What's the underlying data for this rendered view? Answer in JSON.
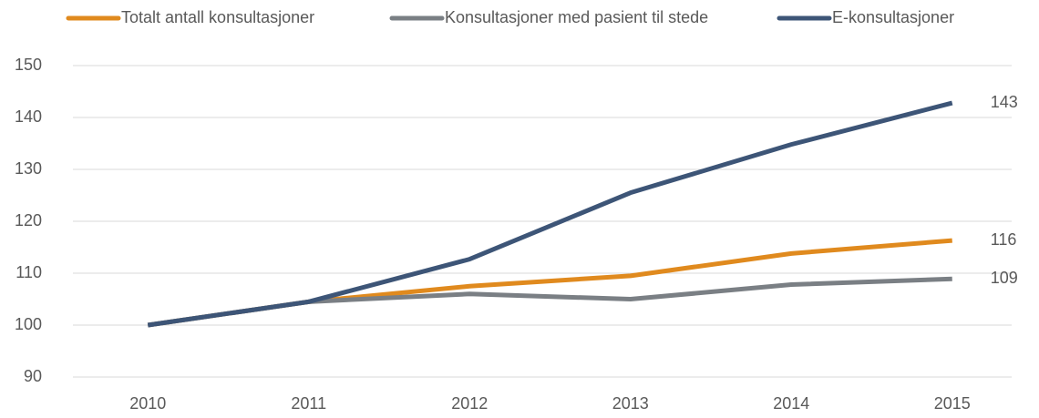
{
  "chart_data": {
    "type": "line",
    "categories": [
      "2010",
      "2011",
      "2012",
      "2013",
      "2014",
      "2015"
    ],
    "series": [
      {
        "name": "Totalt antall konsultasjoner",
        "color": "#e08a1e",
        "values": [
          100,
          104.5,
          107.5,
          109.5,
          113.8,
          116.3
        ],
        "value_labels": [
          null,
          null,
          null,
          null,
          null,
          "116"
        ]
      },
      {
        "name": "Konsultasjoner med pasient til stede",
        "color": "#7a7f84",
        "values": [
          100,
          104.5,
          106,
          105,
          107.8,
          108.9
        ],
        "value_labels": [
          null,
          null,
          null,
          null,
          null,
          "109"
        ]
      },
      {
        "name": "E-konsultasjoner",
        "color": "#3d5577",
        "values": [
          100,
          104.5,
          112.7,
          125.5,
          134.8,
          142.8
        ],
        "value_labels": [
          null,
          null,
          null,
          null,
          null,
          "143"
        ]
      }
    ],
    "ylim": [
      90,
      150
    ],
    "yticks": [
      90,
      100,
      110,
      120,
      130,
      140,
      150
    ],
    "grid": true,
    "legend": "top"
  }
}
